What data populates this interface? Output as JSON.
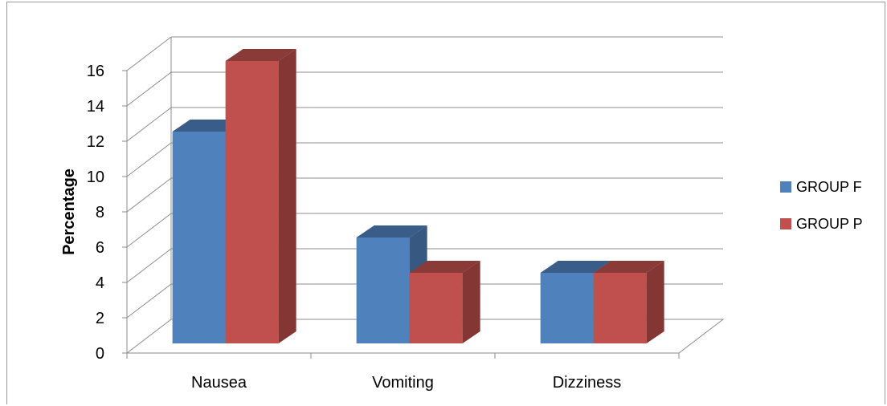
{
  "chart_data": {
    "type": "bar",
    "categories": [
      "Nausea",
      "Vomiting",
      "Dizziness"
    ],
    "series": [
      {
        "name": "GROUP F",
        "values": [
          12,
          6,
          4
        ],
        "color": "#4F81BD"
      },
      {
        "name": "GROUP P",
        "values": [
          16,
          4,
          4
        ],
        "color": "#C0504D"
      }
    ],
    "ylabel": "Percentage",
    "xlabel": "",
    "title": "",
    "ylim": [
      0,
      16
    ],
    "yticks": [
      0,
      2,
      4,
      6,
      8,
      10,
      12,
      14,
      16
    ],
    "grid": true,
    "legend": "right",
    "style": "3d-clustered-column"
  }
}
